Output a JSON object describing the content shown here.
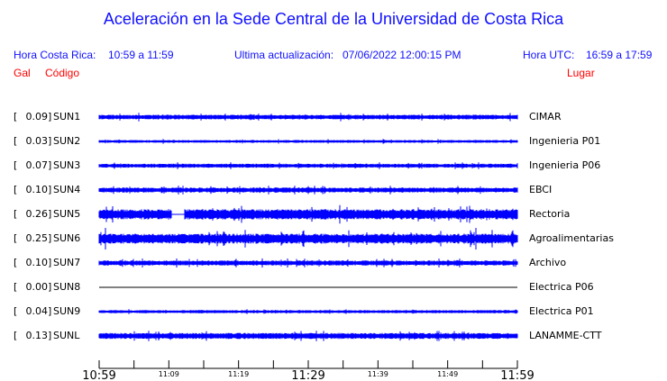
{
  "chart_data": {
    "type": "line",
    "title": "Aceleración en la Sede Central de la Universidad de Costa Rica",
    "header": {
      "local_label": "Hora Costa Rica:",
      "local_range": "10:59 a 11:59",
      "update_label": "Ultima actualización:",
      "update_value": "07/06/2022 12:00:15 PM",
      "utc_label": "Hora UTC:",
      "utc_range": "16:59 a 17:59"
    },
    "column_labels": {
      "gal": "Gal",
      "code": "Código",
      "place": "Lugar"
    },
    "series": [
      {
        "gal": "0.09",
        "code": "SUN1",
        "place": "CIMAR",
        "peak": 0.09
      },
      {
        "gal": "0.03",
        "code": "SUN2",
        "place": "Ingenieria P01",
        "peak": 0.03
      },
      {
        "gal": "0.07",
        "code": "SUN3",
        "place": "Ingenieria P06",
        "peak": 0.07
      },
      {
        "gal": "0.10",
        "code": "SUN4",
        "place": "EBCI",
        "peak": 0.1
      },
      {
        "gal": "0.26",
        "code": "SUN5",
        "place": "Rectoria",
        "peak": 0.26
      },
      {
        "gal": "0.25",
        "code": "SUN6",
        "place": "Agroalimentarias",
        "peak": 0.25
      },
      {
        "gal": "0.10",
        "code": "SUN7",
        "place": "Archivo",
        "peak": 0.1
      },
      {
        "gal": "0.00",
        "code": "SUN8",
        "place": "Electrica P06",
        "peak": 0.0
      },
      {
        "gal": "0.04",
        "code": "SUN9",
        "place": "Electrica P01",
        "peak": 0.04
      },
      {
        "gal": "0.13",
        "code": "SUNL",
        "place": "LANAMME-CTT",
        "peak": 0.13
      }
    ],
    "x_ticks_major": [
      "10:59",
      "11:29",
      "11:59"
    ],
    "x_ticks_minor": [
      "11:09",
      "11:19",
      "11:39",
      "11:49"
    ],
    "x_range": [
      "10:59",
      "11:59"
    ],
    "color": "#0000ff"
  }
}
